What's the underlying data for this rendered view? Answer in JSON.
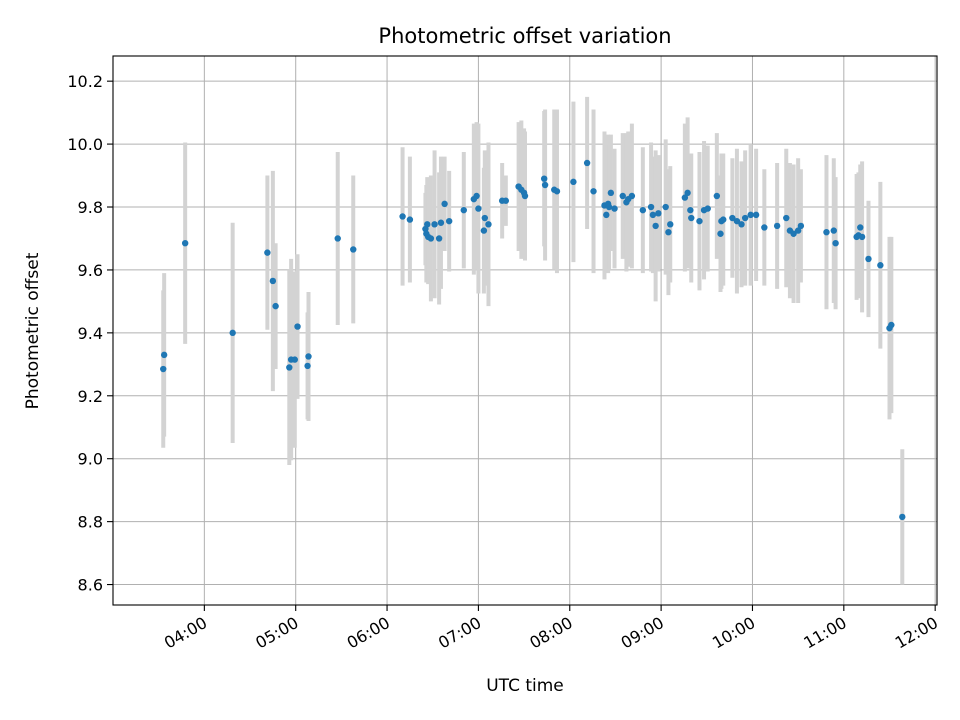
{
  "chart_data": {
    "type": "scatter",
    "title": "Photometric offset variation",
    "xlabel": "UTC time",
    "ylabel": "Photometric offset",
    "grid": true,
    "x_unit": "hours UTC",
    "xlim": [
      3.0,
      12.02
    ],
    "ylim": [
      8.535,
      10.28
    ],
    "x_ticks": [
      4,
      5,
      6,
      7,
      8,
      9,
      10,
      11,
      12
    ],
    "x_tick_labels": [
      "04:00",
      "05:00",
      "06:00",
      "07:00",
      "08:00",
      "09:00",
      "10:00",
      "11:00",
      "12:00"
    ],
    "y_ticks": [
      8.6,
      8.8,
      9.0,
      9.2,
      9.4,
      9.6,
      9.8,
      10.0,
      10.2
    ],
    "y_tick_labels": [
      "8.6",
      "8.8",
      "9.0",
      "9.2",
      "9.4",
      "9.6",
      "9.8",
      "10.0",
      "10.2"
    ],
    "colors": {
      "point": "#1f77b4",
      "errorbar": "#d3d3d3",
      "grid": "#b0b0b0"
    },
    "series": [
      {
        "x": [
          3.55,
          3.56,
          3.79,
          4.31,
          4.69,
          4.75,
          4.78,
          4.93,
          4.95,
          4.99,
          5.02,
          5.13,
          5.14,
          5.46,
          5.63,
          6.17,
          6.25,
          6.42,
          6.43,
          6.44,
          6.45,
          6.48,
          6.52,
          6.57,
          6.59,
          6.63,
          6.68,
          6.84,
          6.95,
          6.98,
          7.0,
          7.06,
          7.07,
          7.11,
          7.26,
          7.3,
          7.44,
          7.47,
          7.5,
          7.51,
          7.72,
          7.73,
          7.83,
          7.86,
          8.04,
          8.19,
          8.26,
          8.38,
          8.4,
          8.42,
          8.43,
          8.45,
          8.49,
          8.58,
          8.62,
          8.64,
          8.68,
          8.8,
          8.89,
          8.91,
          8.94,
          8.97,
          9.05,
          9.08,
          9.1,
          9.26,
          9.29,
          9.32,
          9.33,
          9.42,
          9.47,
          9.51,
          9.61,
          9.65,
          9.66,
          9.68,
          9.78,
          9.83,
          9.88,
          9.92,
          9.98,
          10.04,
          10.13,
          10.27,
          10.37,
          10.41,
          10.45,
          10.5,
          10.53,
          10.81,
          10.89,
          10.91,
          11.14,
          11.16,
          11.18,
          11.2,
          11.27,
          11.4,
          11.5,
          11.52,
          11.64
        ],
        "y": [
          9.285,
          9.33,
          9.685,
          9.4,
          9.655,
          9.565,
          9.485,
          9.29,
          9.315,
          9.315,
          9.42,
          9.295,
          9.325,
          9.7,
          9.665,
          9.77,
          9.76,
          9.73,
          9.715,
          9.745,
          9.705,
          9.7,
          9.745,
          9.7,
          9.75,
          9.81,
          9.755,
          9.79,
          9.825,
          9.835,
          9.795,
          9.725,
          9.765,
          9.745,
          9.82,
          9.82,
          9.865,
          9.855,
          9.845,
          9.835,
          9.89,
          9.87,
          9.855,
          9.85,
          9.88,
          9.94,
          9.85,
          9.805,
          9.775,
          9.81,
          9.8,
          9.845,
          9.795,
          9.835,
          9.815,
          9.825,
          9.835,
          9.79,
          9.8,
          9.775,
          9.74,
          9.78,
          9.8,
          9.72,
          9.745,
          9.83,
          9.845,
          9.79,
          9.765,
          9.755,
          9.79,
          9.795,
          9.835,
          9.715,
          9.755,
          9.76,
          9.765,
          9.755,
          9.745,
          9.765,
          9.775,
          9.775,
          9.735,
          9.74,
          9.765,
          9.725,
          9.715,
          9.725,
          9.74,
          9.72,
          9.725,
          9.685,
          9.705,
          9.71,
          9.735,
          9.705,
          9.635,
          9.615,
          9.415,
          9.425,
          8.815
        ],
        "yerr": [
          0.25,
          0.26,
          0.32,
          0.35,
          0.245,
          0.35,
          0.2,
          0.31,
          0.32,
          0.28,
          0.23,
          0.17,
          0.205,
          0.275,
          0.235,
          0.22,
          0.2,
          0.115,
          0.155,
          0.15,
          0.15,
          0.2,
          0.235,
          0.21,
          0.21,
          0.15,
          0.16,
          0.185,
          0.24,
          0.235,
          0.27,
          0.2,
          0.215,
          0.26,
          0.12,
          0.08,
          0.205,
          0.22,
          0.205,
          0.205,
          0.215,
          0.24,
          0.255,
          0.26,
          0.255,
          0.21,
          0.26,
          0.235,
          0.18,
          0.22,
          0.2,
          0.185,
          0.19,
          0.2,
          0.22,
          0.215,
          0.23,
          0.2,
          0.205,
          0.185,
          0.24,
          0.185,
          0.215,
          0.2,
          0.185,
          0.235,
          0.24,
          0.155,
          0.205,
          0.22,
          0.22,
          0.2,
          0.2,
          0.185,
          0.215,
          0.21,
          0.19,
          0.23,
          0.2,
          0.215,
          0.225,
          0.21,
          0.185,
          0.2,
          0.22,
          0.215,
          0.22,
          0.23,
          0.18,
          0.245,
          0.23,
          0.21,
          0.2,
          0.2,
          0.2,
          0.24,
          0.185,
          0.265,
          0.29,
          0.28,
          0.215
        ]
      }
    ]
  }
}
